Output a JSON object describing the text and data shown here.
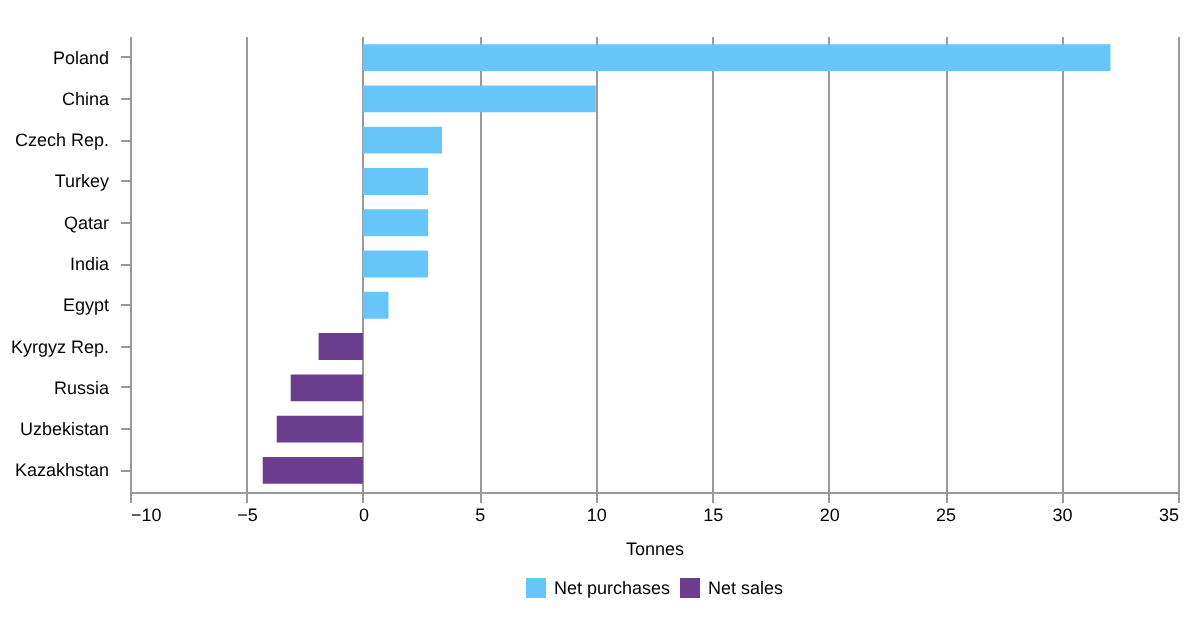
{
  "chart_data": {
    "type": "bar",
    "orientation": "horizontal",
    "xlabel": "Tonnes",
    "categories": [
      "Poland",
      "China",
      "Czech Rep.",
      "Turkey",
      "Qatar",
      "India",
      "Egypt",
      "Kyrgyz Rep.",
      "Russia",
      "Uzbekistan",
      "Kazakhstan"
    ],
    "series": [
      {
        "name": "Net purchases",
        "color": "#66c6fa",
        "values": [
          32.1,
          10.0,
          3.4,
          2.8,
          2.8,
          2.8,
          1.1,
          null,
          null,
          null,
          null
        ]
      },
      {
        "name": "Net sales",
        "color": "#6a3d8f",
        "values": [
          null,
          null,
          null,
          null,
          null,
          null,
          null,
          -1.9,
          -3.1,
          -3.7,
          -4.3
        ]
      }
    ],
    "xlim": [
      -10,
      35
    ],
    "xticks": [
      -10,
      -5,
      0,
      5,
      10,
      15,
      20,
      25,
      30,
      35
    ],
    "grid": "x",
    "legend": "bottom"
  }
}
